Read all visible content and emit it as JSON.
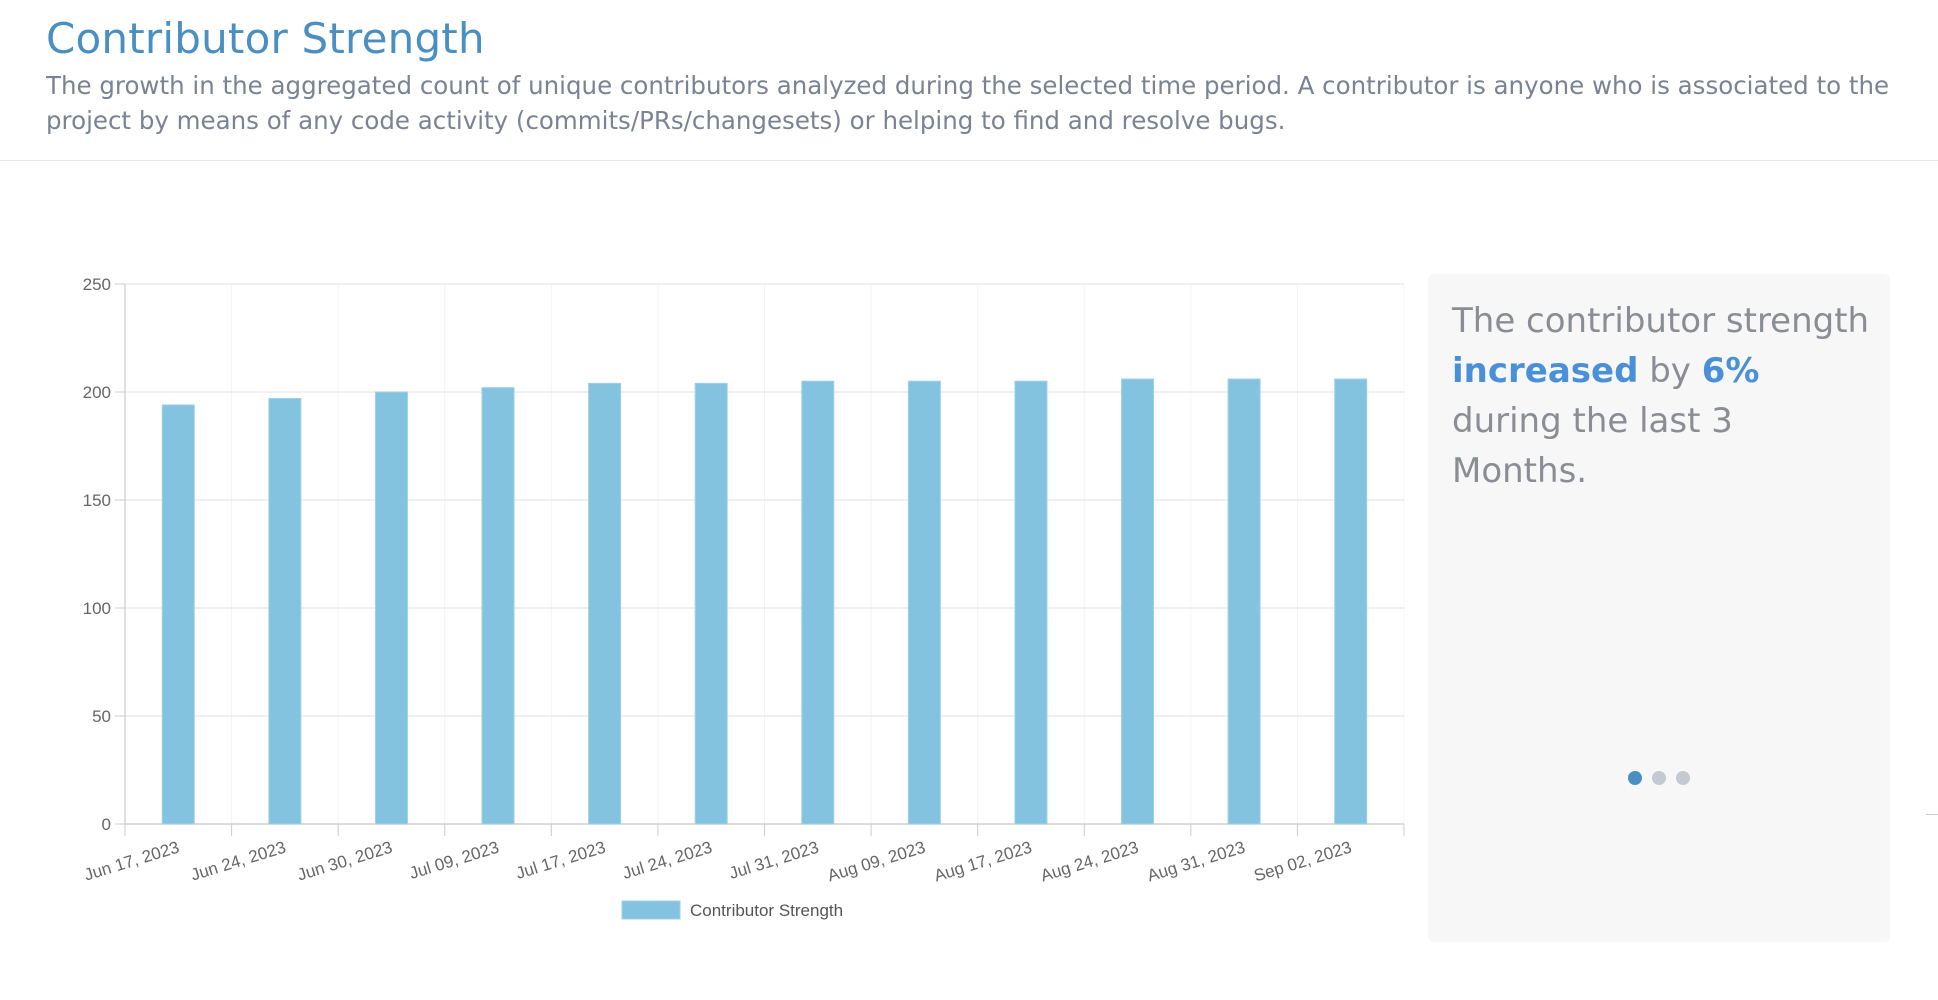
{
  "header": {
    "title": "Contributor Strength",
    "description": "The growth in the aggregated count of unique contributors analyzed during the selected time period. A contributor is anyone who is associated to the project by means of any code activity (commits/PRs/changesets) or helping to find and resolve bugs."
  },
  "insight": {
    "text_before": "The contributor strength ",
    "trend_word": "increased",
    "text_middle": " by ",
    "percent": "6%",
    "text_after": " during the last 3 Months.",
    "pager_total": 3,
    "pager_active": 1
  },
  "colors": {
    "bar": "#84c3df",
    "title": "#4a8fc2",
    "highlight": "#4a90d9"
  },
  "chart_data": {
    "type": "bar",
    "categories": [
      "Jun 17, 2023",
      "Jun 24, 2023",
      "Jun 30, 2023",
      "Jul 09, 2023",
      "Jul 17, 2023",
      "Jul 24, 2023",
      "Jul 31, 2023",
      "Aug 09, 2023",
      "Aug 17, 2023",
      "Aug 24, 2023",
      "Aug 31, 2023",
      "Sep 02, 2023"
    ],
    "series": [
      {
        "name": "Contributor Strength",
        "values": [
          194,
          197,
          200,
          202,
          204,
          204,
          205,
          205,
          205,
          206,
          206,
          206
        ]
      }
    ],
    "ylim": [
      0,
      250
    ],
    "yticks": [
      0,
      50,
      100,
      150,
      200,
      250
    ],
    "grid": true,
    "legend": "bottom"
  }
}
